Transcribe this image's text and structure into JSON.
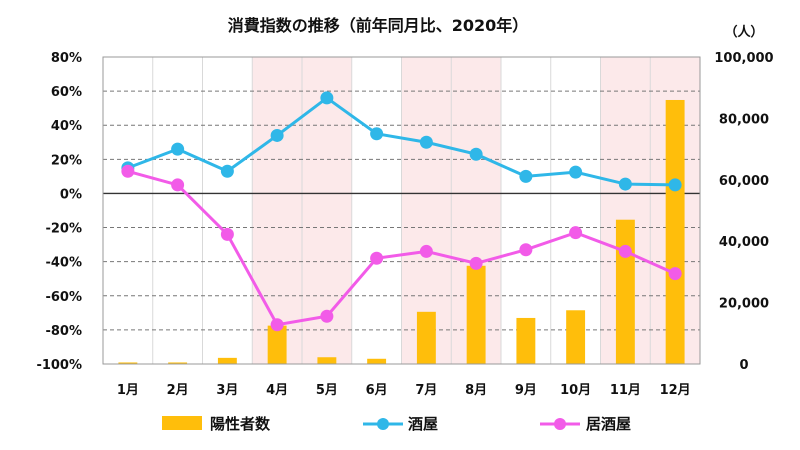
{
  "chart_data": {
    "type": "bar+line",
    "title": "消費指数の推移（前年同月比、2020年）",
    "categories": [
      "1月",
      "2月",
      "3月",
      "4月",
      "5月",
      "6月",
      "7月",
      "8月",
      "9月",
      "10月",
      "11月",
      "12月"
    ],
    "y_left": {
      "min": -100,
      "max": 80,
      "step": 20,
      "tick_labels": [
        "80%",
        "60%",
        "40%",
        "20%",
        "0%",
        "-20%",
        "-40%",
        "-60%",
        "-80%",
        "-100%"
      ]
    },
    "y_right": {
      "unit_label": "（人）",
      "min": 0,
      "max": 100000,
      "step": 20000,
      "tick_labels": [
        "100,000",
        "80,000",
        "60,000",
        "40,000",
        "20,000",
        "0"
      ]
    },
    "bars": {
      "name": "陽性者数",
      "axis": "right",
      "color": "#FFBE0B",
      "values": [
        500,
        500,
        2000,
        12500,
        2200,
        1700,
        17000,
        32000,
        15000,
        17500,
        47000,
        86000
      ]
    },
    "series": [
      {
        "name": "酒屋",
        "axis": "left",
        "color": "#2FB7E8",
        "values": [
          15,
          26,
          13,
          34,
          56,
          35,
          30,
          23,
          10,
          12.5,
          5.5,
          5
        ]
      },
      {
        "name": "居酒屋",
        "axis": "left",
        "color": "#F25BE8",
        "values": [
          13,
          5,
          -24,
          -77,
          -72,
          -38,
          -34,
          -41,
          -33,
          -23,
          -34,
          -47
        ]
      }
    ],
    "shaded_months": [
      "4月",
      "5月",
      "7月",
      "8月",
      "11月",
      "12月"
    ],
    "shade_color": "#FCE9EA",
    "grid": true,
    "legend": {
      "position": "bottom",
      "items": [
        "陽性者数",
        "酒屋",
        "居酒屋"
      ]
    }
  }
}
